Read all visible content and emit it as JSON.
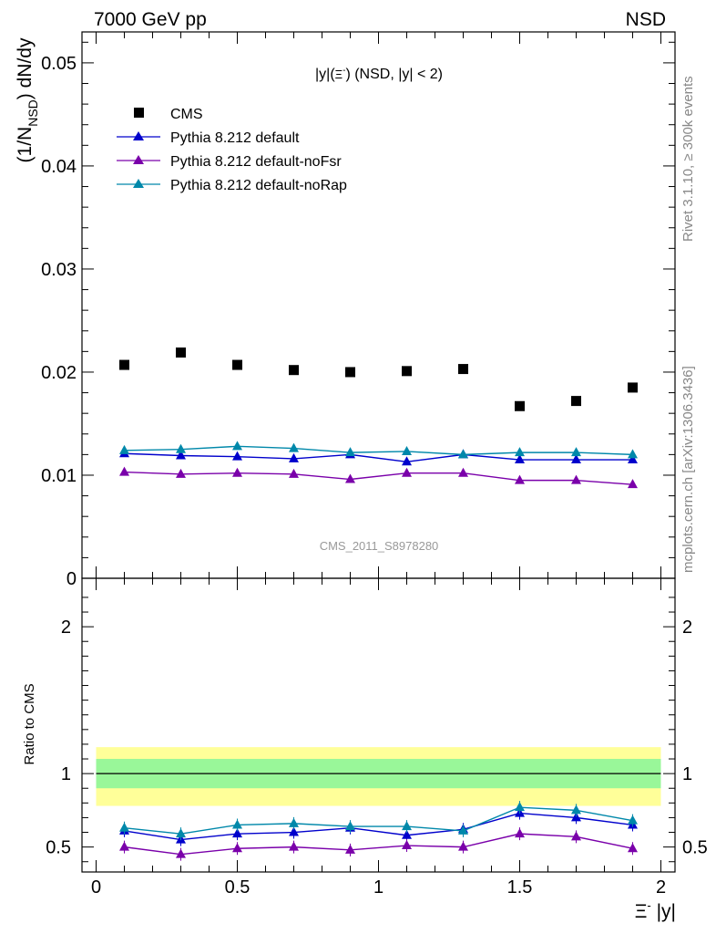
{
  "header": {
    "left": "7000 GeV pp",
    "right": "NSD"
  },
  "side_text": {
    "rivet": "Rivet 3.1.10, ≥ 300k events",
    "mcplots": "mcplots.cern.ch [arXiv:1306.3436]"
  },
  "watermark": "CMS_2011_S8978280",
  "legend": {
    "title": "|y|(Ξ⁻) (NSD, |y| < 2)",
    "cms": "CMS",
    "default": "Pythia 8.212 default",
    "noFsr": "Pythia 8.212 default-noFsr",
    "noRap": "Pythia 8.212 default-noRap"
  },
  "labels": {
    "ylabel_top": "(1/N_NSD) dN/dy",
    "ylabel_bottom": "Ratio to CMS",
    "xlabel": "Ξ⁻ |y|"
  },
  "colors": {
    "cms": "#000000",
    "default": "#0000cc",
    "noFsr": "#7a00aa",
    "noRap": "#0088aa",
    "band_inner": "#99f799",
    "band_outer": "#ffff99"
  },
  "chart_data": [
    {
      "type": "scatter",
      "title": "|y|(Ξ⁻) (NSD, |y| < 2)",
      "xlabel": "Ξ⁻ |y|",
      "ylabel": "(1/N_NSD) dN/dy",
      "xlim": [
        -0.05,
        2.05
      ],
      "ylim": [
        0,
        0.053
      ],
      "x": [
        0.1,
        0.3,
        0.5,
        0.7,
        0.9,
        1.1,
        1.3,
        1.5,
        1.7,
        1.9
      ],
      "y_ticks": [
        "0",
        "0.01",
        "0.02",
        "0.03",
        "0.04",
        "0.05"
      ],
      "series": [
        {
          "name": "CMS",
          "values": [
            0.0207,
            0.0219,
            0.0207,
            0.0202,
            0.02,
            0.0201,
            0.0203,
            0.0167,
            0.0172,
            0.0185
          ]
        },
        {
          "name": "Pythia 8.212 default",
          "values": [
            0.0121,
            0.0119,
            0.0118,
            0.0116,
            0.012,
            0.0113,
            0.012,
            0.0115,
            0.0115,
            0.0115
          ]
        },
        {
          "name": "Pythia 8.212 default-noFsr",
          "values": [
            0.0103,
            0.0101,
            0.0102,
            0.0101,
            0.0096,
            0.0102,
            0.0102,
            0.0095,
            0.0095,
            0.0091
          ]
        },
        {
          "name": "Pythia 8.212 default-noRap",
          "values": [
            0.0124,
            0.0125,
            0.0128,
            0.0126,
            0.0122,
            0.0123,
            0.012,
            0.0122,
            0.0122,
            0.012
          ]
        }
      ]
    },
    {
      "type": "line",
      "ylabel": "Ratio to CMS",
      "xlabel": "Ξ⁻ |y|",
      "xlim": [
        -0.05,
        2.05
      ],
      "ylim": [
        0.33,
        2.33
      ],
      "x": [
        0.1,
        0.3,
        0.5,
        0.7,
        0.9,
        1.1,
        1.3,
        1.5,
        1.7,
        1.9
      ],
      "x_ticks": [
        "0",
        "0.5",
        "1",
        "1.5",
        "2"
      ],
      "y_ticks": [
        "0.5",
        "1",
        "2"
      ],
      "band_inner": [
        0.9,
        1.1
      ],
      "band_outer": [
        0.78,
        1.18
      ],
      "series": [
        {
          "name": "Pythia 8.212 default",
          "values": [
            0.61,
            0.55,
            0.59,
            0.6,
            0.63,
            0.58,
            0.62,
            0.73,
            0.7,
            0.65
          ]
        },
        {
          "name": "Pythia 8.212 default-noFsr",
          "values": [
            0.5,
            0.45,
            0.49,
            0.5,
            0.48,
            0.51,
            0.5,
            0.59,
            0.57,
            0.49
          ]
        },
        {
          "name": "Pythia 8.212 default-noRap",
          "values": [
            0.63,
            0.59,
            0.65,
            0.66,
            0.64,
            0.64,
            0.61,
            0.77,
            0.75,
            0.68
          ]
        }
      ]
    }
  ]
}
